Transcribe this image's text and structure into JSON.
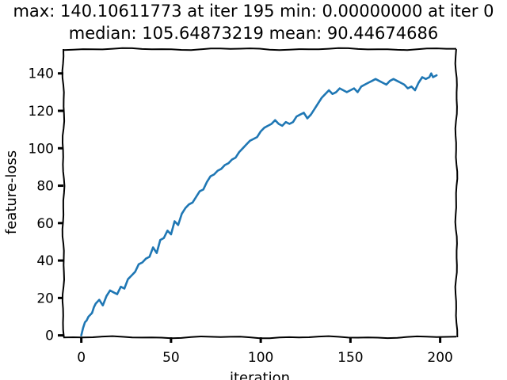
{
  "chart_data": {
    "type": "line",
    "title_lines": [
      "max: 140.10611773 at iter 195 min: 0.00000000 at iter 0",
      "median: 105.64873219 mean: 90.44674686"
    ],
    "xlabel": "iteration",
    "ylabel": "feature-loss",
    "xlim": [
      -10,
      209
    ],
    "ylim": [
      -1,
      153
    ],
    "xticks": [
      0,
      50,
      100,
      150,
      200
    ],
    "yticks": [
      0,
      20,
      40,
      60,
      80,
      100,
      120,
      140
    ],
    "grid": false,
    "line_color": "#1f77b4",
    "series": [
      {
        "x": [
          0,
          1,
          2,
          3,
          4,
          5,
          6,
          7,
          8,
          9,
          10,
          12,
          14,
          16,
          18,
          20,
          22,
          24,
          26,
          28,
          30,
          32,
          34,
          36,
          38,
          40,
          42,
          44,
          46,
          48,
          50,
          52,
          54,
          56,
          58,
          60,
          62,
          64,
          66,
          68,
          70,
          72,
          74,
          76,
          78,
          80,
          82,
          84,
          86,
          88,
          90,
          92,
          94,
          96,
          98,
          100,
          102,
          104,
          106,
          108,
          110,
          112,
          114,
          116,
          118,
          120,
          122,
          124,
          126,
          128,
          130,
          132,
          134,
          136,
          138,
          140,
          142,
          144,
          146,
          148,
          150,
          152,
          154,
          156,
          158,
          160,
          162,
          164,
          166,
          168,
          170,
          172,
          174,
          176,
          178,
          180,
          182,
          184,
          186,
          188,
          190,
          192,
          194,
          195,
          196,
          198
        ],
        "values": [
          0,
          4,
          7,
          8,
          10,
          11,
          12,
          15,
          17,
          18,
          19,
          16,
          21,
          24,
          23,
          22,
          26,
          25,
          30,
          32,
          34,
          38,
          39,
          41,
          42,
          47,
          44,
          51,
          52,
          56,
          54,
          61,
          59,
          65,
          68,
          70,
          71,
          74,
          77,
          78,
          82,
          85,
          86,
          88,
          89,
          91,
          92,
          94,
          95,
          98,
          100,
          102,
          104,
          105,
          106,
          109,
          111,
          112,
          113,
          115,
          113,
          112,
          114,
          113,
          114,
          117,
          118,
          119,
          116,
          118,
          121,
          124,
          127,
          129,
          131,
          129,
          130,
          132,
          131,
          130,
          131,
          132,
          130,
          133,
          134,
          135,
          136,
          137,
          136,
          135,
          134,
          136,
          137,
          136,
          135,
          134,
          132,
          133,
          131,
          135,
          138,
          137,
          138,
          140,
          138,
          139
        ]
      }
    ]
  }
}
